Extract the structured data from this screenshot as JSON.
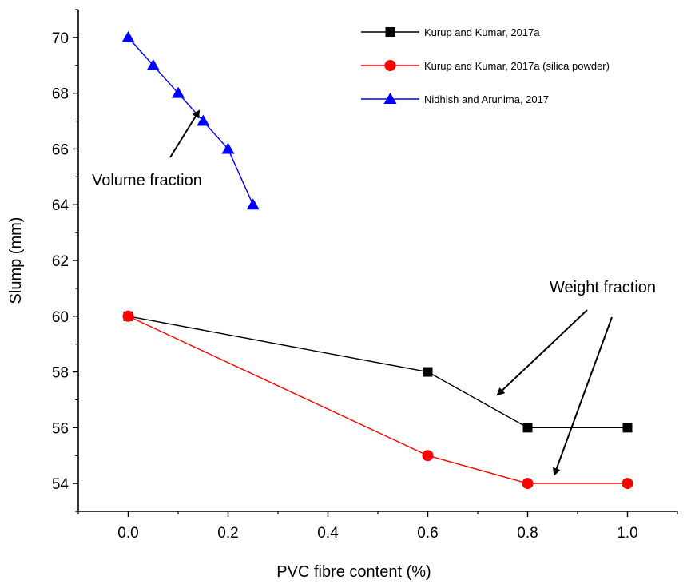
{
  "chart_data": {
    "type": "line",
    "title": "",
    "xlabel": "PVC fibre content (%)",
    "ylabel": "Slump (mm)",
    "xlim": [
      -0.1,
      1.1
    ],
    "ylim": [
      53,
      71
    ],
    "x_ticks": [
      0.0,
      0.2,
      0.4,
      0.6,
      0.8,
      1.0
    ],
    "x_tick_labels": [
      "0.0",
      "0.2",
      "0.4",
      "0.6",
      "0.8",
      "1.0"
    ],
    "y_ticks": [
      54,
      56,
      58,
      60,
      62,
      64,
      66,
      68,
      70
    ],
    "y_tick_labels": [
      "54",
      "56",
      "58",
      "60",
      "62",
      "64",
      "66",
      "68",
      "70"
    ],
    "grid": false,
    "legend_position": "top-right",
    "series": [
      {
        "name": "Kurup and Kumar, 2017a",
        "color": "#000000",
        "marker": "square",
        "x": [
          0.0,
          0.6,
          0.8,
          1.0
        ],
        "y": [
          60,
          58,
          56,
          56
        ]
      },
      {
        "name": "Kurup and Kumar, 2017a (silica powder)",
        "color": "#ff0000",
        "marker": "circle",
        "x": [
          0.0,
          0.6,
          0.8,
          1.0
        ],
        "y": [
          60,
          55,
          54,
          54
        ]
      },
      {
        "name": "Nidhish and Arunima, 2017",
        "color": "#0000ff",
        "marker": "triangle",
        "x": [
          0.0,
          0.05,
          0.1,
          0.15,
          0.2,
          0.25
        ],
        "y": [
          70,
          69,
          68,
          67,
          66,
          64
        ]
      }
    ],
    "annotations": [
      {
        "text": "Volume fraction"
      },
      {
        "text": "Weight fraction"
      }
    ]
  }
}
